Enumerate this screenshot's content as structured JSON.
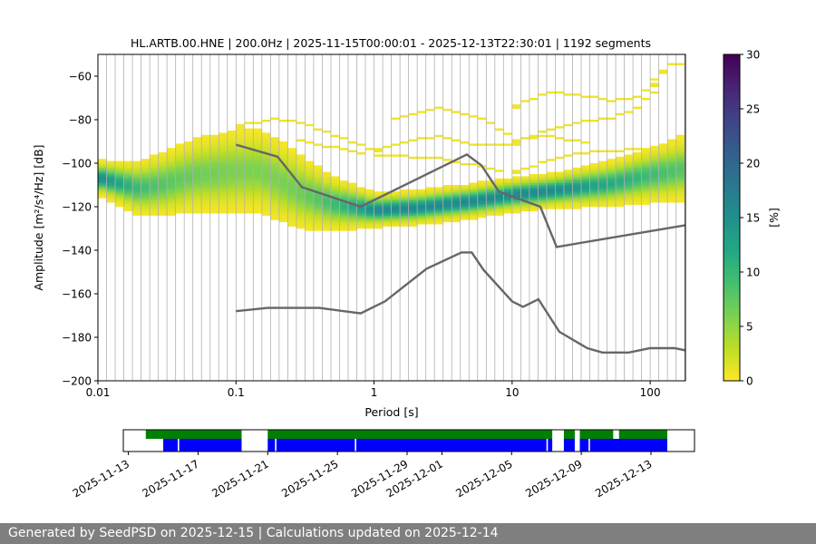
{
  "title": "HL.ARTB.00.HNE | 200.0Hz | 2025-11-15T00:00:01 - 2025-12-13T22:30:01 | 1192 segments",
  "footer": {
    "text": "Generated by SeedPSD on 2025-12-15 | Calculations updated on 2025-12-14"
  },
  "chart_data": {
    "type": "heatmap",
    "title": "HL.ARTB.00.HNE | 200.0Hz | 2025-11-15T00:00:01 - 2025-12-13T22:30:01 | 1192 segments",
    "xlabel": "Period [s]",
    "ylabel": "Amplitude [m²/s⁴/Hz] [dB]",
    "x_scale": "log",
    "xlim": [
      0.01,
      180
    ],
    "ylim": [
      -200,
      -50
    ],
    "x_ticks": [
      {
        "value": 0.01,
        "label": "0.01"
      },
      {
        "value": 0.1,
        "label": "0.1"
      },
      {
        "value": 1,
        "label": "1"
      },
      {
        "value": 10,
        "label": "10"
      },
      {
        "value": 100,
        "label": "100"
      }
    ],
    "y_ticks": [
      {
        "value": -60,
        "label": "−60"
      },
      {
        "value": -80,
        "label": "−80"
      },
      {
        "value": -100,
        "label": "−100"
      },
      {
        "value": -120,
        "label": "−120"
      },
      {
        "value": -140,
        "label": "−140"
      },
      {
        "value": -160,
        "label": "−160"
      },
      {
        "value": -180,
        "label": "−180"
      },
      {
        "value": -200,
        "label": "−200"
      }
    ],
    "grid": "vertical lines at each period bin",
    "colorbar": {
      "label": "[%]",
      "range": [
        0,
        30
      ],
      "ticks": [
        "0",
        "5",
        "10",
        "15",
        "20",
        "25",
        "30"
      ],
      "colormap": "viridis_r"
    },
    "density_ridge": [
      {
        "period": 0.01,
        "mode": -107,
        "spread": 3
      },
      {
        "period": 0.015,
        "mode": -110,
        "spread": 4
      },
      {
        "period": 0.02,
        "mode": -112,
        "spread": 5
      },
      {
        "period": 0.03,
        "mode": -110,
        "spread": 6
      },
      {
        "period": 0.05,
        "mode": -106,
        "spread": 7
      },
      {
        "period": 0.1,
        "mode": -104,
        "spread": 8
      },
      {
        "period": 0.15,
        "mode": -104,
        "spread": 8
      },
      {
        "period": 0.2,
        "mode": -108,
        "spread": 8
      },
      {
        "period": 0.3,
        "mode": -114,
        "spread": 7
      },
      {
        "period": 0.5,
        "mode": -119,
        "spread": 5
      },
      {
        "period": 1,
        "mode": -122,
        "spread": 3
      },
      {
        "period": 2,
        "mode": -121,
        "spread": 3
      },
      {
        "period": 5,
        "mode": -118,
        "spread": 3
      },
      {
        "period": 10,
        "mode": -115,
        "spread": 3
      },
      {
        "period": 20,
        "mode": -113,
        "spread": 3
      },
      {
        "period": 50,
        "mode": -110,
        "spread": 4
      },
      {
        "period": 100,
        "mode": -106,
        "spread": 5
      },
      {
        "period": 180,
        "mode": -103,
        "spread": 6
      }
    ],
    "sparse_traces": [
      [
        [
          0.1,
          -84
        ],
        [
          0.2,
          -80
        ],
        [
          0.3,
          -82
        ],
        [
          0.5,
          -88
        ],
        [
          1,
          -95
        ],
        [
          2,
          -90
        ],
        [
          3,
          -88
        ],
        [
          5,
          -92
        ],
        [
          10,
          -92
        ],
        [
          20,
          -85
        ],
        [
          30,
          -82
        ],
        [
          50,
          -80
        ],
        [
          80,
          -75
        ],
        [
          100,
          -68
        ],
        [
          150,
          -55
        ],
        [
          180,
          -55
        ]
      ],
      [
        [
          1.5,
          -80
        ],
        [
          3,
          -75
        ],
        [
          6,
          -80
        ],
        [
          10,
          -90
        ],
        [
          20,
          -88
        ],
        [
          40,
          -92
        ]
      ],
      [
        [
          10,
          -75
        ],
        [
          20,
          -68
        ],
        [
          30,
          -69
        ],
        [
          50,
          -72
        ],
        [
          80,
          -70
        ],
        [
          100,
          -65
        ],
        [
          150,
          -55
        ]
      ],
      [
        [
          0.3,
          -90
        ],
        [
          1,
          -97
        ],
        [
          3,
          -98
        ],
        [
          10,
          -105
        ],
        [
          30,
          -96
        ],
        [
          100,
          -94
        ],
        [
          180,
          -86
        ]
      ]
    ],
    "series": [
      {
        "values": [
          [
            0.1,
            -91.5
          ],
          [
            0.2,
            -97
          ],
          [
            0.3,
            -111
          ],
          [
            0.8,
            -120
          ],
          [
            4.7,
            -96
          ],
          [
            6,
            -101
          ],
          [
            8,
            -113
          ],
          [
            16,
            -120
          ],
          [
            21,
            -138.5
          ],
          [
            180,
            -128.5
          ]
        ]
      },
      {
        "values": [
          [
            0.1,
            -168
          ],
          [
            0.17,
            -166.5
          ],
          [
            0.4,
            -166.5
          ],
          [
            0.8,
            -169
          ],
          [
            1.2,
            -163.5
          ],
          [
            2.4,
            -148.5
          ],
          [
            4.3,
            -141
          ],
          [
            5.1,
            -141
          ],
          [
            6.2,
            -149
          ],
          [
            10,
            -163.5
          ],
          [
            12,
            -166
          ],
          [
            15.5,
            -162.5
          ],
          [
            22,
            -177.5
          ],
          [
            35,
            -185
          ],
          [
            45,
            -187
          ],
          [
            70,
            -187
          ],
          [
            100,
            -185
          ],
          [
            150,
            -185
          ],
          [
            180,
            -186
          ]
        ]
      }
    ],
    "availability": {
      "date_ticks": [
        "2025-11-13",
        "2025-11-17",
        "2025-11-21",
        "2025-11-25",
        "2025-11-29",
        "2025-12-01",
        "2025-12-05",
        "2025-12-09",
        "2025-12-13"
      ],
      "xlim_dates": [
        "2025-11-12T17:00",
        "2025-12-15T12:00"
      ],
      "green_segments": [
        [
          "2025-11-14T00:00",
          "2025-11-19T12:00"
        ],
        [
          "2025-11-21T00:00",
          "2025-12-07T08:00"
        ],
        [
          "2025-12-08T00:00",
          "2025-12-08T15:00"
        ],
        [
          "2025-12-08T22:00",
          "2025-12-10T20:00"
        ],
        [
          "2025-12-11T04:00",
          "2025-12-13T22:30"
        ]
      ],
      "blue_segments": [
        [
          "2025-11-15T00:00",
          "2025-11-15T20:00"
        ],
        [
          "2025-11-15T22:00",
          "2025-11-19T12:00"
        ],
        [
          "2025-11-21T00:00",
          "2025-11-21T10:00"
        ],
        [
          "2025-11-21T12:00",
          "2025-11-26T00:00"
        ],
        [
          "2025-11-26T02:00",
          "2025-12-07T00:00"
        ],
        [
          "2025-12-07T02:00",
          "2025-12-07T08:00"
        ],
        [
          "2025-12-08T00:00",
          "2025-12-08T15:00"
        ],
        [
          "2025-12-08T22:00",
          "2025-12-09T10:00"
        ],
        [
          "2025-12-09T12:00",
          "2025-12-13T22:30"
        ]
      ]
    }
  }
}
